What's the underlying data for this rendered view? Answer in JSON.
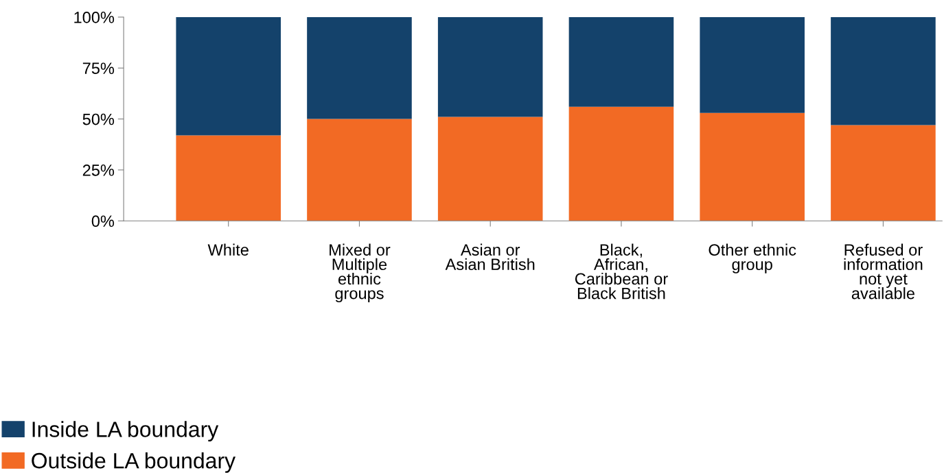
{
  "chart_data": {
    "type": "bar",
    "stacked": true,
    "categories": [
      "White",
      "Mixed or\nMultiple\nethnic\ngroups",
      "Asian or\nAsian British",
      "Black,\nAfrican,\nCaribbean or\nBlack British",
      "Other ethnic\ngroup",
      "Refused or\ninformation\nnot yet\navailable"
    ],
    "series": [
      {
        "name": "Outside LA boundary",
        "color": "#f26a24",
        "values": [
          42,
          50,
          51,
          56,
          53,
          47
        ]
      },
      {
        "name": "Inside LA boundary",
        "color": "#14426b",
        "values": [
          58,
          50,
          49,
          44,
          47,
          53
        ]
      }
    ],
    "ylim": [
      0,
      100
    ],
    "yticks": [
      {
        "value": 0,
        "label": "0%"
      },
      {
        "value": 25,
        "label": "25%"
      },
      {
        "value": 50,
        "label": "50%"
      },
      {
        "value": 75,
        "label": "75%"
      },
      {
        "value": 100,
        "label": "100%"
      }
    ],
    "grid": false,
    "legend": "bottom left"
  }
}
